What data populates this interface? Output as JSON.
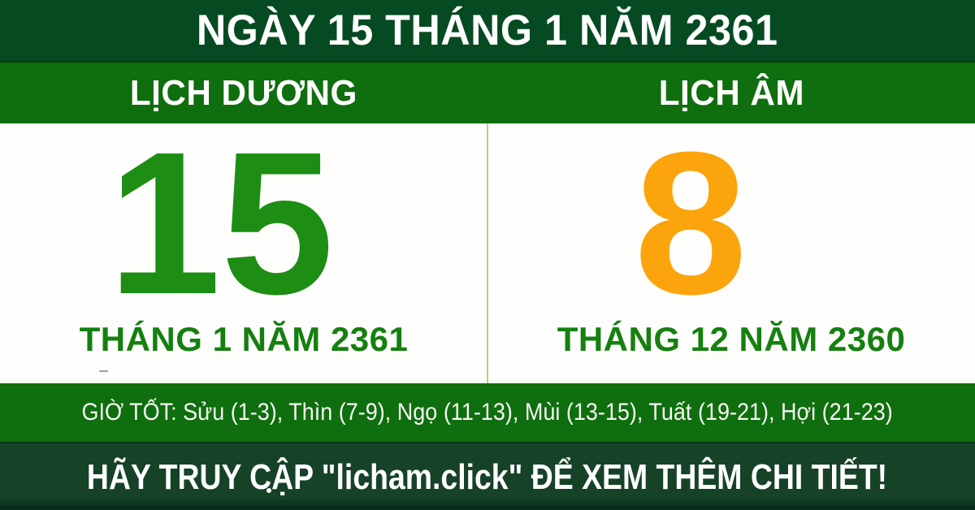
{
  "header": {
    "title": "NGÀY 15 THÁNG 1 NĂM 2361"
  },
  "tabs": {
    "solar": "LỊCH DƯƠNG",
    "lunar": "LỊCH ÂM"
  },
  "solar": {
    "day": "15",
    "month_year": "THÁNG 1 NĂM 2361"
  },
  "lunar": {
    "day": "8",
    "month_year": "THÁNG 12 NĂM 2360"
  },
  "good_hours": {
    "text": "GIỜ TỐT: Sửu (1-3), Thìn (7-9), Ngọ (11-13), Mùi (13-15), Tuất (19-21), Hợi (21-23)"
  },
  "footer": {
    "cta": "HÃY TRUY CẬP \"licham.click\" ĐỂ XEM THÊM CHI TIẾT!"
  },
  "colors": {
    "header_footer_dark_green": "#064a22",
    "footer_green": "#164228",
    "band_green": "#0f6e0d",
    "solar_day_green": "#1d8e13",
    "lunar_day_orange": "#fca40b",
    "month_label_green": "#15800f",
    "divider_light_green": "#aed687",
    "background_white": "#fdfdfc",
    "text_white": "#ffffff"
  }
}
